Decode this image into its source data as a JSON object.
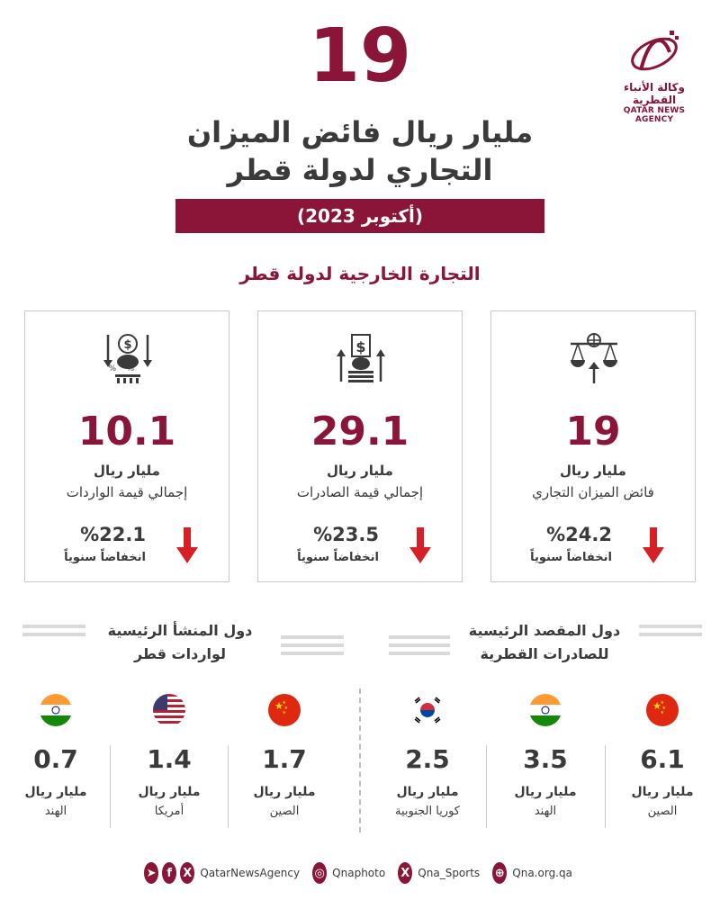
{
  "logo": {
    "name_ar": "وكالة الأنباء القطرية",
    "name_en": "QATAR NEWS AGENCY"
  },
  "header": {
    "big_number": "19",
    "headline_line1": "مليار ريال فائض الميزان",
    "headline_line2": "التجاري لدولة قطر",
    "date_label": "(أكتوبر 2023)"
  },
  "section_title": "التجارة الخارجية لدولة قطر",
  "cards": [
    {
      "icon": "balance-scale-icon",
      "value": "19",
      "unit": "مليار ريال",
      "label": "فائض الميزان التجاري",
      "pct": "%24.2",
      "change": "انخفاضاً سنوياً"
    },
    {
      "icon": "exports-icon",
      "value": "29.1",
      "unit": "مليار ريال",
      "label": "إجمالي قيمة الصادرات",
      "pct": "%23.5",
      "change": "انخفاضاً سنوياً"
    },
    {
      "icon": "imports-icon",
      "value": "10.1",
      "unit": "مليار ريال",
      "label": "إجمالي قيمة الواردات",
      "pct": "%22.1",
      "change": "انخفاضاً سنوياً"
    }
  ],
  "exports_section": {
    "title_line1": "دول المقصد الرئيسية",
    "title_line2": "للصادرات القطرية",
    "countries": [
      {
        "flag": "china-flag",
        "value": "6.1",
        "unit": "مليار ريال",
        "name": "الصين"
      },
      {
        "flag": "india-flag",
        "value": "3.5",
        "unit": "مليار ريال",
        "name": "الهند"
      },
      {
        "flag": "south-korea-flag",
        "value": "2.5",
        "unit": "مليار ريال",
        "name": "كوريا الجنوبية"
      }
    ]
  },
  "imports_section": {
    "title_line1": "دول المنشأ الرئيسية",
    "title_line2": "لواردات قطر",
    "countries": [
      {
        "flag": "china-flag",
        "value": "1.7",
        "unit": "مليار ريال",
        "name": "الصين"
      },
      {
        "flag": "usa-flag",
        "value": "1.4",
        "unit": "مليار ريال",
        "name": "أمريكا"
      },
      {
        "flag": "india-flag",
        "value": "0.7",
        "unit": "مليار ريال",
        "name": "الهند"
      }
    ]
  },
  "footer": {
    "handle1": "QatarNewsAgency",
    "handle2": "Qnaphoto",
    "handle3": "Qna_Sports",
    "handle4": "Qna.org.qa"
  },
  "colors": {
    "brand": "#8a1538",
    "arrow": "#d61f26",
    "text": "#3a3a3a"
  }
}
